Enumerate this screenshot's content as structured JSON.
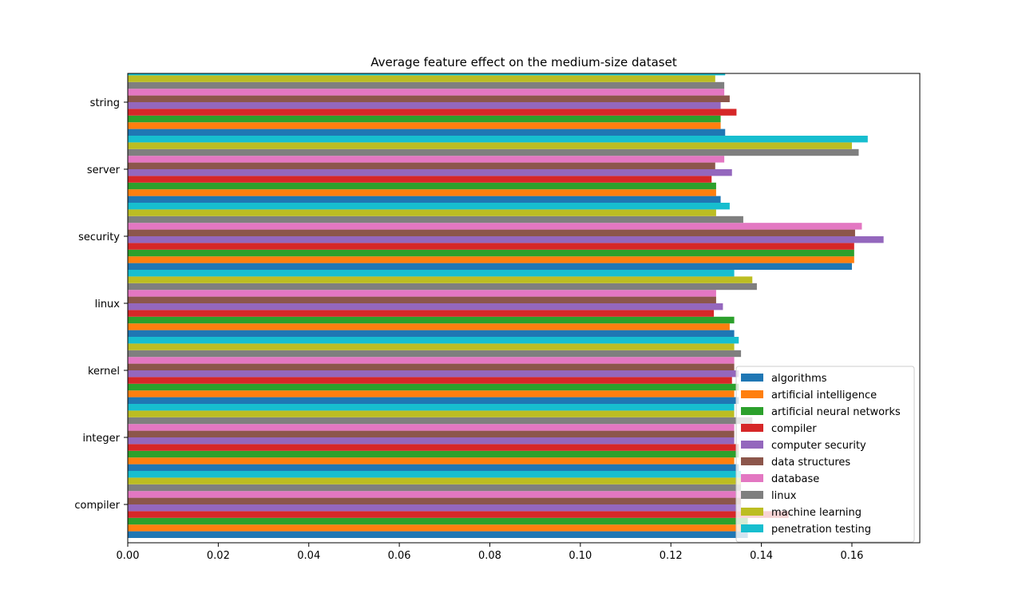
{
  "chart_data": {
    "type": "bar",
    "orientation": "horizontal",
    "title": "Average feature effect on the medium-size dataset",
    "xlabel": "",
    "ylabel": "",
    "xlim": [
      0,
      0.175
    ],
    "xticks": [
      "0.00",
      "0.02",
      "0.04",
      "0.06",
      "0.08",
      "0.10",
      "0.12",
      "0.14",
      "0.16"
    ],
    "categories": [
      "compiler",
      "integer",
      "kernel",
      "linux",
      "security",
      "server",
      "string"
    ],
    "legend_position": "lower-right",
    "grid": false,
    "series": [
      {
        "name": "algorithms",
        "color": "#1f77b4",
        "values": [
          0.137,
          0.135,
          0.135,
          0.134,
          0.16,
          0.131,
          0.132
        ]
      },
      {
        "name": "artificial intelligence",
        "color": "#ff7f0e",
        "values": [
          0.136,
          0.134,
          0.134,
          0.133,
          0.1605,
          0.13,
          0.131
        ]
      },
      {
        "name": "artificial neural networks",
        "color": "#2ca02c",
        "values": [
          0.137,
          0.135,
          0.135,
          0.134,
          0.1605,
          0.13,
          0.131
        ]
      },
      {
        "name": "compiler",
        "color": "#d62728",
        "values": [
          0.146,
          0.135,
          0.1335,
          0.1295,
          0.1605,
          0.129,
          0.1345
        ]
      },
      {
        "name": "computer security",
        "color": "#9467bd",
        "values": [
          0.1355,
          0.134,
          0.135,
          0.1315,
          0.167,
          0.1335,
          0.131
        ]
      },
      {
        "name": "data structures",
        "color": "#8c564b",
        "values": [
          0.1355,
          0.134,
          0.134,
          0.13,
          0.1607,
          0.1298,
          0.133
        ]
      },
      {
        "name": "database",
        "color": "#e377c2",
        "values": [
          0.1355,
          0.134,
          0.134,
          0.13,
          0.1622,
          0.1318,
          0.1318
        ]
      },
      {
        "name": "linux",
        "color": "#7f7f7f",
        "values": [
          0.1355,
          0.138,
          0.1355,
          0.139,
          0.136,
          0.1615,
          0.1318
        ]
      },
      {
        "name": "machine learning",
        "color": "#bcbd22",
        "values": [
          0.1355,
          0.134,
          0.134,
          0.138,
          0.13,
          0.16,
          0.1298
        ]
      },
      {
        "name": "penetration testing",
        "color": "#17becf",
        "values": [
          0.1355,
          0.134,
          0.135,
          0.134,
          0.133,
          0.1635,
          0.132
        ]
      }
    ]
  }
}
